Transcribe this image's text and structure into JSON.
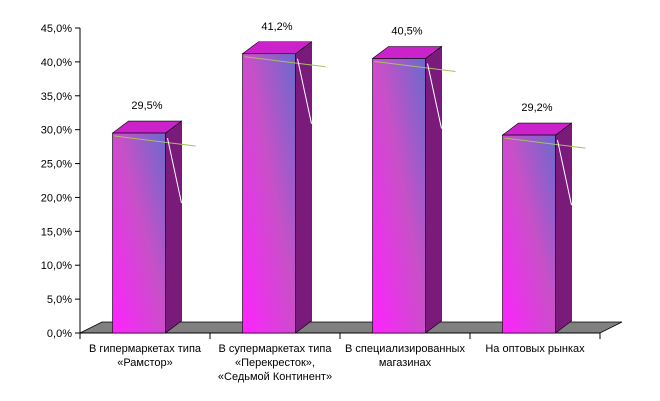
{
  "chart_data": {
    "type": "bar",
    "style": "3d-column",
    "title": "",
    "xlabel": "",
    "ylabel": "",
    "ylim": [
      0,
      45
    ],
    "y_tick_step": 5,
    "y_tick_format": "percent-one-decimal-comma",
    "grid": false,
    "legend": "none",
    "categories": [
      [
        "В гипермаркетах типа",
        "«Рамстор»"
      ],
      [
        "В супермаркетах типа",
        "«Перекресток»,",
        "«Седьмой Континент»"
      ],
      [
        "В специализированных",
        "магазинах"
      ],
      [
        "На оптовых рынках"
      ]
    ],
    "values": [
      29.5,
      41.2,
      40.5,
      29.2
    ],
    "data_labels": [
      "29,5%",
      "41,2%",
      "40,5%",
      "29,2%"
    ],
    "y_tick_labels": [
      "0,0%",
      "5,0%",
      "10,0%",
      "15,0%",
      "20,0%",
      "25,0%",
      "30,0%",
      "35,0%",
      "40,0%",
      "45,0%"
    ],
    "colors": {
      "bar_front_top": "#c850c8",
      "bar_front_bottom": "#ff22ff",
      "bar_front_right": "#6a6acc",
      "bar_top": "#cc22cc",
      "bar_side": "#7a1a7a",
      "floor": "#808080",
      "axis": "#000000"
    }
  }
}
